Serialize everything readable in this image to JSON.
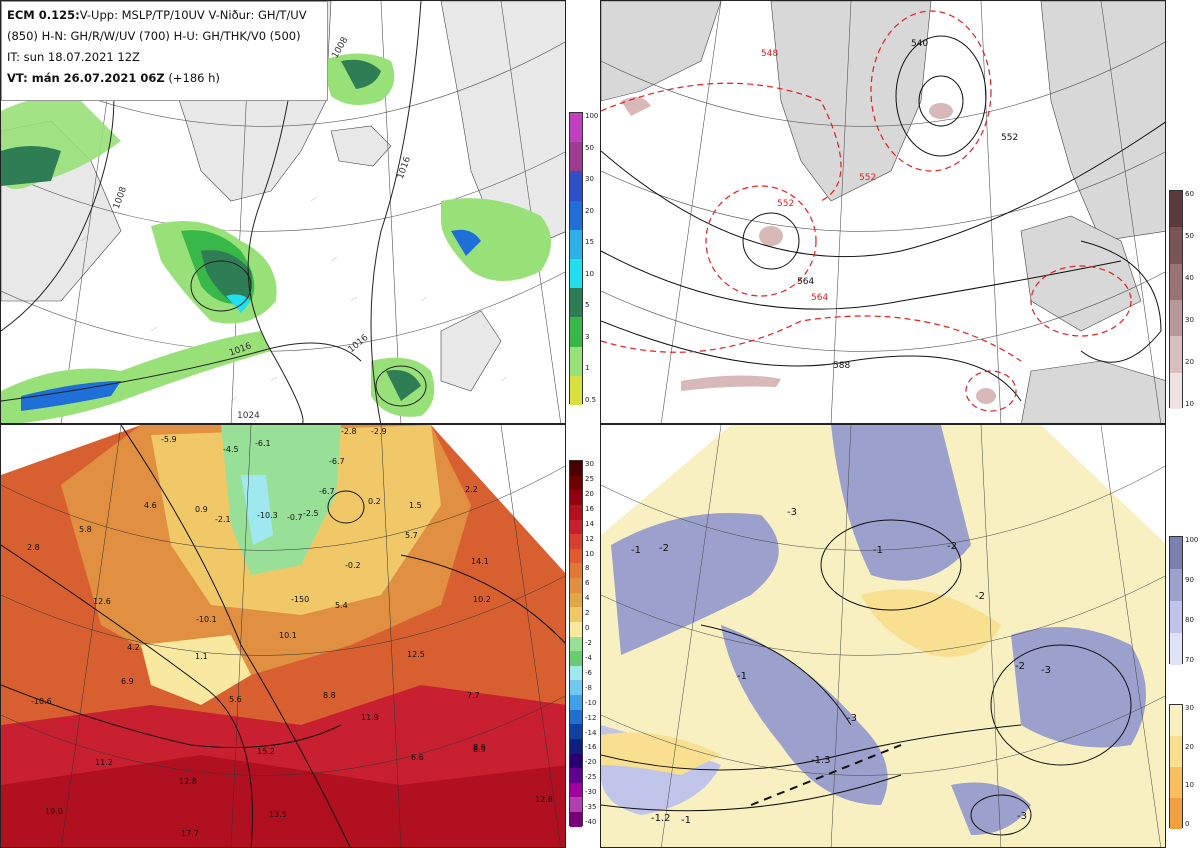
{
  "header": {
    "line1_model": "ECM 0.125:",
    "line1_rest": "V-Upp: MSLP/TP/10UV V-Niður: GH/T/UV",
    "line2": "(850) H-N: GH/R/W/UV (700) H-U: GH/THK/V0 (500)",
    "line3": "IT: sun 18.07.2021 12Z",
    "line4_bold": "VT: mán 26.07.2021 06Z",
    "line4_rest": "(+186 h)"
  },
  "colorbars": {
    "precip": {
      "ticks": [
        "100",
        "50",
        "30",
        "20",
        "15",
        "10",
        "5",
        "3",
        "1",
        "0.5"
      ],
      "colors": [
        "#c040c0",
        "#9c3b8f",
        "#3050c8",
        "#1e6fd8",
        "#30b0e8",
        "#20e0f0",
        "#2e7d54",
        "#38b848",
        "#98e078",
        "#d8e040"
      ]
    },
    "thickness": {
      "ticks": [
        "60",
        "50",
        "40",
        "30",
        "20",
        "10"
      ],
      "colors": [
        "#5a3a3a",
        "#7a5555",
        "#9a7474",
        "#b89a9a",
        "#d8c0c0",
        "#f0e2e2"
      ]
    },
    "temperature": {
      "ticks": [
        "30",
        "25",
        "20",
        "16",
        "14",
        "12",
        "10",
        "8",
        "6",
        "4",
        "2",
        "0",
        "-2",
        "-4",
        "-6",
        "-8",
        "-10",
        "-12",
        "-14",
        "-16",
        "-20",
        "-25",
        "-30",
        "-35",
        "-40"
      ],
      "colors": [
        "#4a0000",
        "#700000",
        "#900010",
        "#b01020",
        "#c82030",
        "#d84030",
        "#e05a30",
        "#e07838",
        "#e09040",
        "#e0a848",
        "#f0c868",
        "#f8e8a0",
        "#98e098",
        "#68cc70",
        "#a0e8f0",
        "#70c8f0",
        "#40a0e8",
        "#2070d0",
        "#1040a0",
        "#102080",
        "#2a0070",
        "#600090",
        "#a000a0",
        "#b040b0",
        "#7a007a"
      ]
    },
    "humidity": {
      "ticks": [
        "100",
        "90",
        "80",
        "70"
      ],
      "colors": [
        "#7a80b0",
        "#9ca0cc",
        "#c0c4e8",
        "#e0e2f8"
      ]
    },
    "vv": {
      "ticks": [
        "30",
        "20",
        "10",
        "0"
      ],
      "colors": [
        "#f8f0c0",
        "#f8e090",
        "#f8c060",
        "#f0a040"
      ]
    }
  },
  "panel_tl": {
    "isobar_labels": [
      "1008",
      "1008",
      "1016",
      "1016",
      "1016",
      "1024"
    ]
  },
  "panel_tr": {
    "height_labels": [
      "540",
      "548",
      "552",
      "552",
      "564",
      "564",
      "588",
      "552"
    ]
  },
  "panel_bl": {
    "temp_values": [
      "-5.9",
      "-4.5",
      "-6.1",
      "-2.8",
      "-2.9",
      "2.8",
      "4.6",
      "0.9",
      "-2.1",
      "-10.3",
      "-0.7",
      "-2.5",
      "-6.7",
      "-6.7",
      "0.2",
      "1.5",
      "5.8",
      "5.7",
      "-0.2",
      "14.1",
      "10.2",
      "12.6",
      "-10.1",
      "5.4",
      "10.1",
      "-150",
      "4.2",
      "1.1",
      "6.9",
      "5.6",
      "8.8",
      "12.5",
      "7.7",
      "8.9",
      "-10.6",
      "11.9",
      "15.2",
      "6.6",
      "8.9",
      "11.2",
      "12.8",
      "19.0",
      "13.5",
      "12.8",
      "17.7",
      "2.2"
    ]
  },
  "panel_br": {
    "values": [
      "-3",
      "-2",
      "-1",
      "-1",
      "-2",
      "-2",
      "-2",
      "-3",
      "-1",
      "-3",
      "-1.3",
      "-1.2",
      "-3",
      "-1"
    ]
  }
}
